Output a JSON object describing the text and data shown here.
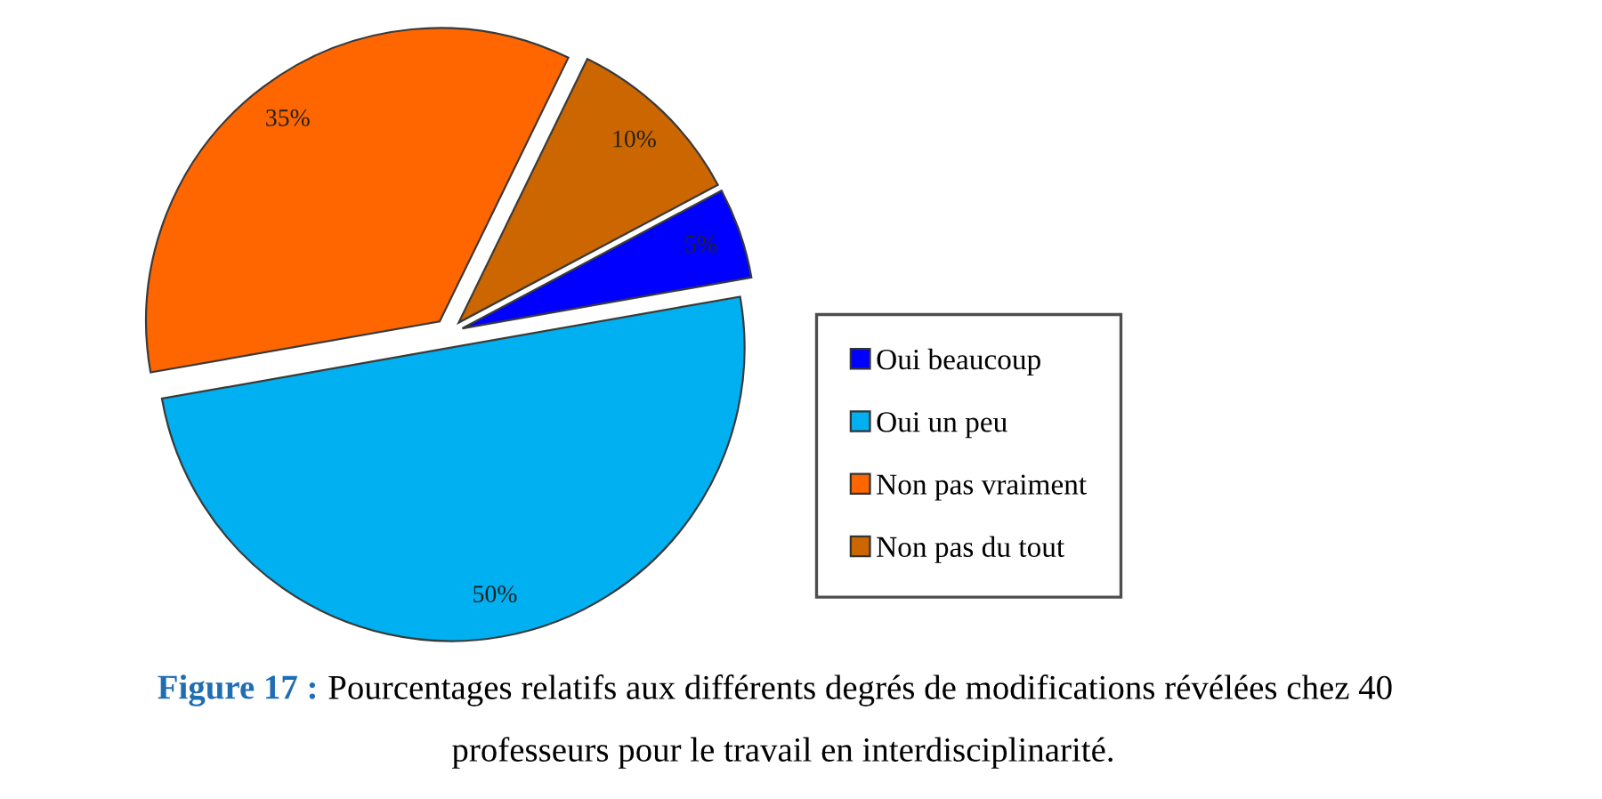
{
  "chart_data": {
    "type": "pie",
    "categories": [
      "Oui beaucoup",
      "Oui un peu",
      "Non pas vraiment",
      "Non pas du tout"
    ],
    "values": [
      5,
      50,
      35,
      10
    ],
    "colors": [
      "#0000ff",
      "#00b0f0",
      "#ff6600",
      "#cc6600"
    ],
    "value_labels": [
      "5%",
      "50%",
      "35%",
      "10%"
    ],
    "legend": "right",
    "annotations": [
      "Figure 17 :",
      "Pourcentages relatifs aux différents degrés de modifications révélées chez 40\nprofesseurs pour le travail en interdisciplinarité."
    ]
  }
}
